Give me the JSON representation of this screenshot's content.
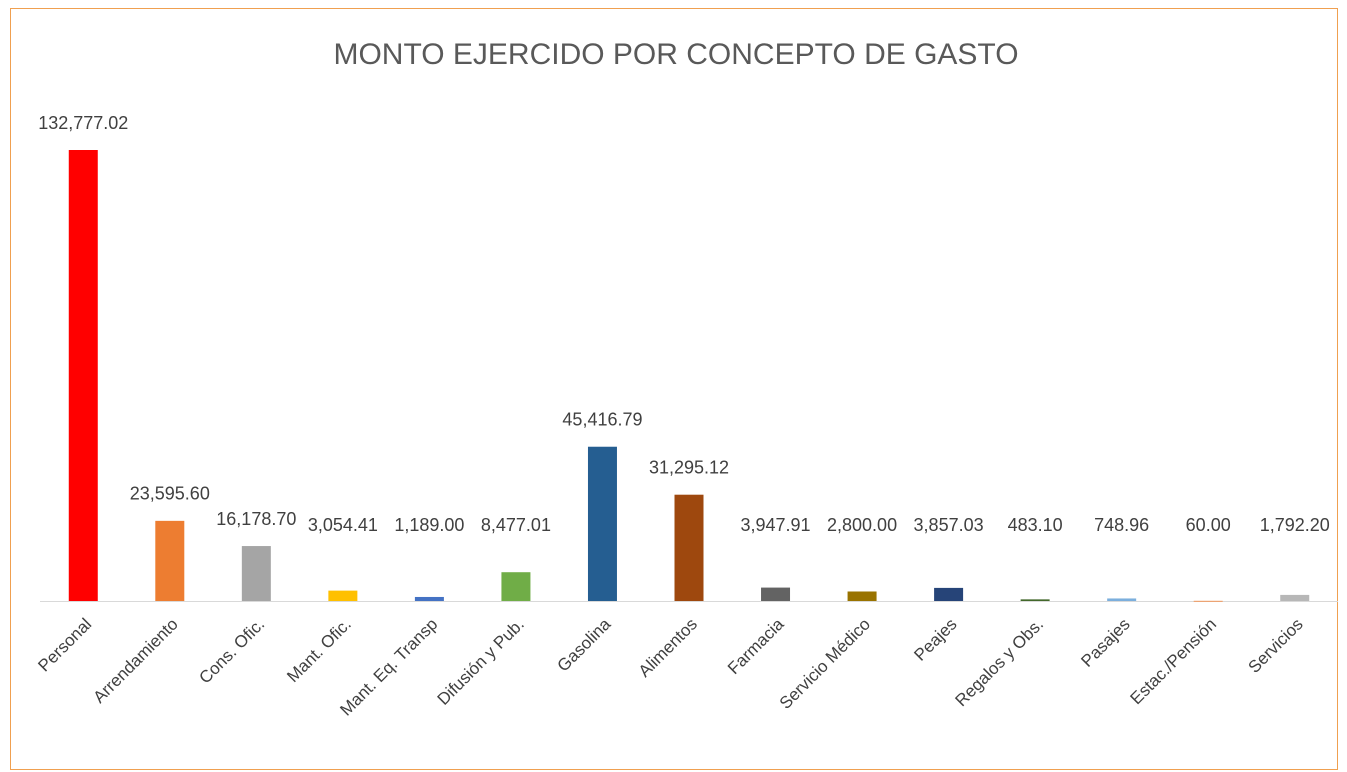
{
  "chart_data": {
    "type": "bar",
    "title": "MONTO EJERCIDO POR CONCEPTO DE GASTO",
    "categories": [
      "Personal",
      "Arrendamiento",
      "Cons. Ofic.",
      "Mant. Ofic.",
      "Mant. Eq. Transp",
      "Difusión y Pub.",
      "Gasolina",
      "Alimentos",
      "Farmacia",
      "Servicio Médico",
      "Peajes",
      "Regalos y Obs.",
      "Pasajes",
      "Estac./Pensión",
      "Servicios"
    ],
    "values": [
      132777.02,
      23595.6,
      16178.7,
      3054.41,
      1189.0,
      8477.01,
      45416.79,
      31295.12,
      3947.91,
      2800.0,
      3857.03,
      483.1,
      748.96,
      60.0,
      1792.2
    ],
    "value_labels": [
      "132,777.02",
      "23,595.60",
      "16,178.70",
      "3,054.41",
      "1,189.00",
      "8,477.01",
      "45,416.79",
      "31,295.12",
      "3,947.91",
      "2,800.00",
      "3,857.03",
      "483.10",
      "748.96",
      "60.00",
      "1,792.20"
    ],
    "colors": [
      "#ff0000",
      "#ed7d31",
      "#a5a5a5",
      "#ffc000",
      "#4472c4",
      "#70ad47",
      "#255e91",
      "#9e480e",
      "#636363",
      "#997300",
      "#264478",
      "#43682b",
      "#7cafdd",
      "#f1975a",
      "#b7b7b7"
    ]
  }
}
